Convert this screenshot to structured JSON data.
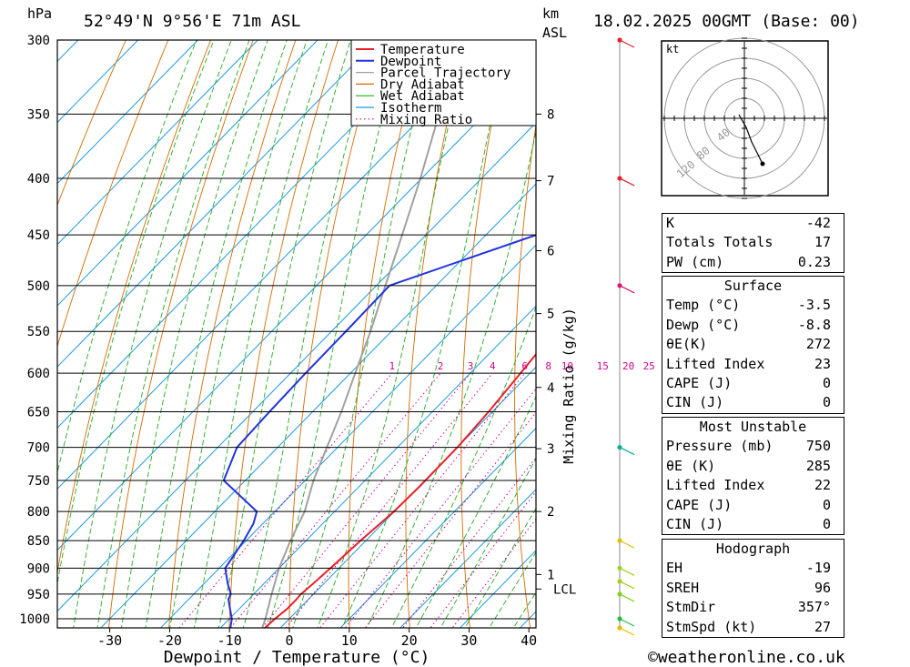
{
  "header": {
    "pressure_unit": "hPa",
    "location": "52°49'N  9°56'E  71m  ASL",
    "height_unit_1": "km",
    "height_unit_2": "ASL",
    "datetime": "18.02.2025  00GMT  (Base: 00)"
  },
  "chart_data": {
    "type": "line",
    "title": "",
    "xlabel": "Dewpoint / Temperature (°C)",
    "ylabel": "hPa",
    "pressure_levels": [
      300,
      350,
      400,
      450,
      500,
      550,
      600,
      650,
      700,
      750,
      800,
      850,
      900,
      950,
      1000
    ],
    "x_ticks": [
      -30,
      -20,
      -10,
      0,
      10,
      20,
      30,
      40
    ],
    "xlim": [
      -40,
      40
    ],
    "ylim": [
      1030,
      300
    ],
    "y_scale": "log",
    "height_ticks": [
      {
        "label": "8",
        "p": 350
      },
      {
        "label": "7",
        "p": 402
      },
      {
        "label": "6",
        "p": 465
      },
      {
        "label": "5",
        "p": 530
      },
      {
        "label": "4",
        "p": 618
      },
      {
        "label": "3",
        "p": 702
      },
      {
        "label": "2",
        "p": 800
      },
      {
        "label": "1",
        "p": 912
      },
      {
        "label": "LCL",
        "p": 940
      }
    ],
    "height_axis_label": "Mixing Ratio (g/kg)",
    "mixing_ratio_labels": [
      "1",
      "2",
      "3",
      "4",
      "6",
      "8",
      "10",
      "15",
      "20",
      "25"
    ],
    "mixing_ratio_values": [
      1,
      2,
      3,
      4,
      6,
      8,
      10,
      15,
      20,
      25
    ],
    "series": [
      {
        "name": "Temperature",
        "color": "#e8202a",
        "points": [
          [
            1020,
            -2.6
          ],
          [
            1000,
            -2.4
          ],
          [
            980,
            -2.0
          ],
          [
            960,
            -2.0
          ],
          [
            950,
            -2.1
          ],
          [
            930,
            -1.8
          ],
          [
            900,
            -1.4
          ],
          [
            850,
            -0.9
          ],
          [
            800,
            -0.1
          ],
          [
            760,
            0.1
          ],
          [
            700,
            0.0
          ],
          [
            650,
            -0.6
          ],
          [
            600,
            -1.6
          ],
          [
            550,
            -2.7
          ],
          [
            500,
            -4.5
          ],
          [
            450,
            -6.8
          ],
          [
            400,
            -10.6
          ],
          [
            350,
            -16.4
          ],
          [
            300,
            -23.5
          ]
        ]
      },
      {
        "name": "Dewpoint",
        "color": "#2233dd",
        "points": [
          [
            1020,
            -8.3
          ],
          [
            1000,
            -9.6
          ],
          [
            980,
            -11.5
          ],
          [
            960,
            -13.4
          ],
          [
            950,
            -13.8
          ],
          [
            930,
            -16.0
          ],
          [
            900,
            -19.0
          ],
          [
            850,
            -20.4
          ],
          [
            820,
            -21.6
          ],
          [
            800,
            -23.0
          ],
          [
            750,
            -33.6
          ],
          [
            700,
            -36.8
          ],
          [
            650,
            -37.2
          ],
          [
            600,
            -37.5
          ],
          [
            550,
            -37.6
          ],
          [
            500,
            -37.8
          ],
          [
            450,
            -21.6
          ],
          [
            400,
            -23.0
          ],
          [
            350,
            -25.2
          ],
          [
            300,
            -34.8
          ]
        ]
      },
      {
        "name": "Parcel Trajectory",
        "color": "#a0a0a0",
        "points": [
          [
            1020,
            -3.0
          ],
          [
            1000,
            -4.0
          ],
          [
            950,
            -7.0
          ],
          [
            900,
            -10.0
          ],
          [
            850,
            -12.6
          ],
          [
            800,
            -15.0
          ],
          [
            750,
            -18.6
          ],
          [
            700,
            -21.8
          ],
          [
            650,
            -25.2
          ],
          [
            600,
            -29.2
          ],
          [
            550,
            -33.5
          ],
          [
            500,
            -38.5
          ],
          [
            450,
            -44.0
          ],
          [
            400,
            -50.2
          ],
          [
            350,
            -57.6
          ],
          [
            300,
            -66.5
          ]
        ]
      },
      {
        "name": "Dry Adiabat",
        "color": "#d26c00"
      },
      {
        "name": "Wet Adiabat",
        "color": "#22aa22"
      },
      {
        "name": "Isotherm",
        "color": "#1a9ae0"
      },
      {
        "name": "Mixing Ratio",
        "color": "#d0008c"
      }
    ],
    "legend_position": "top-right"
  },
  "wind_profile": [
    {
      "p": 300,
      "color": "#e8202a"
    },
    {
      "p": 400,
      "color": "#e8202a"
    },
    {
      "p": 500,
      "color": "#e01070"
    },
    {
      "p": 700,
      "color": "#00b090"
    },
    {
      "p": 850,
      "color": "#e0c000"
    },
    {
      "p": 900,
      "color": "#a0d020"
    },
    {
      "p": 925,
      "color": "#a0d020"
    },
    {
      "p": 950,
      "color": "#80d020"
    },
    {
      "p": 1000,
      "color": "#20c040"
    },
    {
      "p": 1020,
      "color": "#e0c000"
    }
  ],
  "hodograph": {
    "unit_label": "kt",
    "ring_labels": [
      "40",
      "80",
      "120"
    ]
  },
  "indices": [
    {
      "label": "K",
      "value": "-42"
    },
    {
      "label": "Totals Totals",
      "value": "17"
    },
    {
      "label": "PW (cm)",
      "value": "0.23"
    }
  ],
  "surface": {
    "title": "Surface",
    "rows": [
      {
        "label": "Temp (°C)",
        "value": "-3.5"
      },
      {
        "label": "Dewp (°C)",
        "value": "-8.8"
      },
      {
        "label": "θE(K)",
        "value": "272"
      },
      {
        "label": "Lifted Index",
        "value": "23"
      },
      {
        "label": "CAPE (J)",
        "value": "0"
      },
      {
        "label": "CIN (J)",
        "value": "0"
      }
    ]
  },
  "most_unstable": {
    "title": "Most Unstable",
    "rows": [
      {
        "label": "Pressure (mb)",
        "value": "750"
      },
      {
        "label": "θE (K)",
        "value": "285"
      },
      {
        "label": "Lifted Index",
        "value": "22"
      },
      {
        "label": "CAPE (J)",
        "value": "0"
      },
      {
        "label": "CIN (J)",
        "value": "0"
      }
    ]
  },
  "hodograph_table": {
    "title": "Hodograph",
    "rows": [
      {
        "label": "EH",
        "value": "-19"
      },
      {
        "label": "SREH",
        "value": "96"
      },
      {
        "label": "StmDir",
        "value": "357°"
      },
      {
        "label": "StmSpd (kt)",
        "value": "27"
      }
    ]
  },
  "footer": {
    "credit": "©weatheronline.co.uk"
  }
}
